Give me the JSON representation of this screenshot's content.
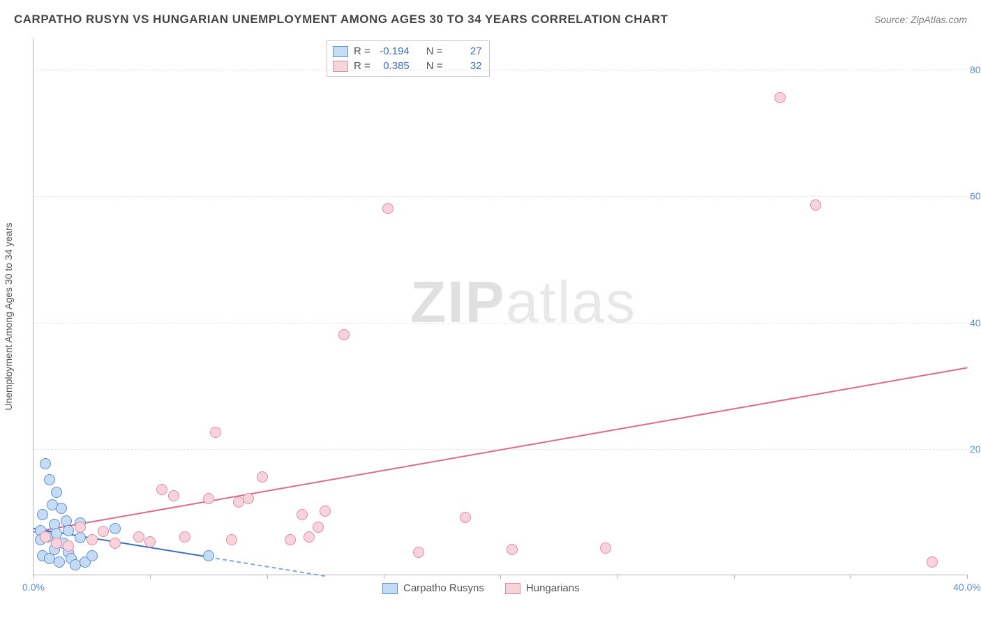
{
  "title": "CARPATHO RUSYN VS HUNGARIAN UNEMPLOYMENT AMONG AGES 30 TO 34 YEARS CORRELATION CHART",
  "source": "Source: ZipAtlas.com",
  "watermark_a": "ZIP",
  "watermark_b": "atlas",
  "ylabel": "Unemployment Among Ages 30 to 34 years",
  "chart": {
    "type": "scatter",
    "xlim": [
      0,
      40
    ],
    "ylim": [
      0,
      85
    ],
    "xticks": [
      0,
      40
    ],
    "xtick_labels": [
      "0.0%",
      "40.0%"
    ],
    "xtick_minors": [
      5,
      10,
      15,
      20,
      25,
      30,
      35
    ],
    "yticks": [
      20,
      40,
      60,
      80
    ],
    "ytick_labels": [
      "20.0%",
      "40.0%",
      "60.0%",
      "80.0%"
    ],
    "background_color": "#ffffff",
    "grid_color": "#e4e4e4",
    "axis_color": "#b0b0b0",
    "tick_label_color": "#5a8fd6",
    "title_color": "#454545",
    "title_fontsize": 17,
    "label_fontsize": 14,
    "tick_fontsize": 14,
    "marker_radius": 8,
    "marker_stroke": 1.5
  },
  "series": [
    {
      "name": "Carpatho Rusyns",
      "fill": "#c6dbf4",
      "stroke": "#5a8fd6",
      "r_label": "R =",
      "r_value": "-0.194",
      "n_label": "N =",
      "n_value": "27",
      "trend": {
        "x1": 0,
        "y1": 7.5,
        "x2": 7.5,
        "y2": 3.0,
        "color": "#3b6fc7",
        "width": 2
      },
      "trend_dash": {
        "x1": 7.5,
        "y1": 3.0,
        "x2": 12.5,
        "y2": 0.0,
        "color": "#7fa8db",
        "width": 2
      },
      "points": [
        [
          0.3,
          7.0
        ],
        [
          0.3,
          5.5
        ],
        [
          0.4,
          9.5
        ],
        [
          0.4,
          3.0
        ],
        [
          0.5,
          17.5
        ],
        [
          0.6,
          6.0
        ],
        [
          0.7,
          15.0
        ],
        [
          0.7,
          2.5
        ],
        [
          0.8,
          11.0
        ],
        [
          0.9,
          8.0
        ],
        [
          0.9,
          4.0
        ],
        [
          1.0,
          13.0
        ],
        [
          1.0,
          6.5
        ],
        [
          1.1,
          2.0
        ],
        [
          1.2,
          10.5
        ],
        [
          1.3,
          5.0
        ],
        [
          1.4,
          8.5
        ],
        [
          1.5,
          3.5
        ],
        [
          1.5,
          7.0
        ],
        [
          1.6,
          2.5
        ],
        [
          1.8,
          1.5
        ],
        [
          2.0,
          5.8
        ],
        [
          2.0,
          8.2
        ],
        [
          2.2,
          2.0
        ],
        [
          2.5,
          3.0
        ],
        [
          3.5,
          7.3
        ],
        [
          7.5,
          3.0
        ]
      ]
    },
    {
      "name": "Hungarians",
      "fill": "#f7d3dc",
      "stroke": "#e48aa3",
      "r_label": "R =",
      "r_value": "0.385",
      "n_label": "N =",
      "n_value": "32",
      "trend": {
        "x1": 0,
        "y1": 7.0,
        "x2": 40,
        "y2": 33.0,
        "color": "#e06a8a",
        "width": 2
      },
      "points": [
        [
          0.5,
          6.0
        ],
        [
          1.0,
          5.0
        ],
        [
          1.5,
          4.5
        ],
        [
          2.0,
          7.5
        ],
        [
          2.5,
          5.5
        ],
        [
          3.0,
          6.8
        ],
        [
          3.5,
          5.0
        ],
        [
          4.5,
          6.0
        ],
        [
          5.0,
          5.2
        ],
        [
          5.5,
          13.5
        ],
        [
          6.0,
          12.5
        ],
        [
          6.5,
          6.0
        ],
        [
          7.5,
          12.0
        ],
        [
          7.8,
          22.5
        ],
        [
          8.5,
          5.5
        ],
        [
          8.8,
          11.5
        ],
        [
          9.2,
          12.0
        ],
        [
          9.8,
          15.5
        ],
        [
          11.0,
          5.5
        ],
        [
          11.5,
          9.5
        ],
        [
          11.8,
          6.0
        ],
        [
          12.2,
          7.5
        ],
        [
          12.5,
          10.0
        ],
        [
          13.3,
          38.0
        ],
        [
          15.2,
          58.0
        ],
        [
          16.5,
          3.5
        ],
        [
          18.5,
          9.0
        ],
        [
          20.5,
          4.0
        ],
        [
          24.5,
          4.2
        ],
        [
          32.0,
          75.5
        ],
        [
          33.5,
          58.5
        ],
        [
          38.5,
          2.0
        ]
      ]
    }
  ],
  "legend_label_a": "Carpatho Rusyns",
  "legend_label_b": "Hungarians"
}
